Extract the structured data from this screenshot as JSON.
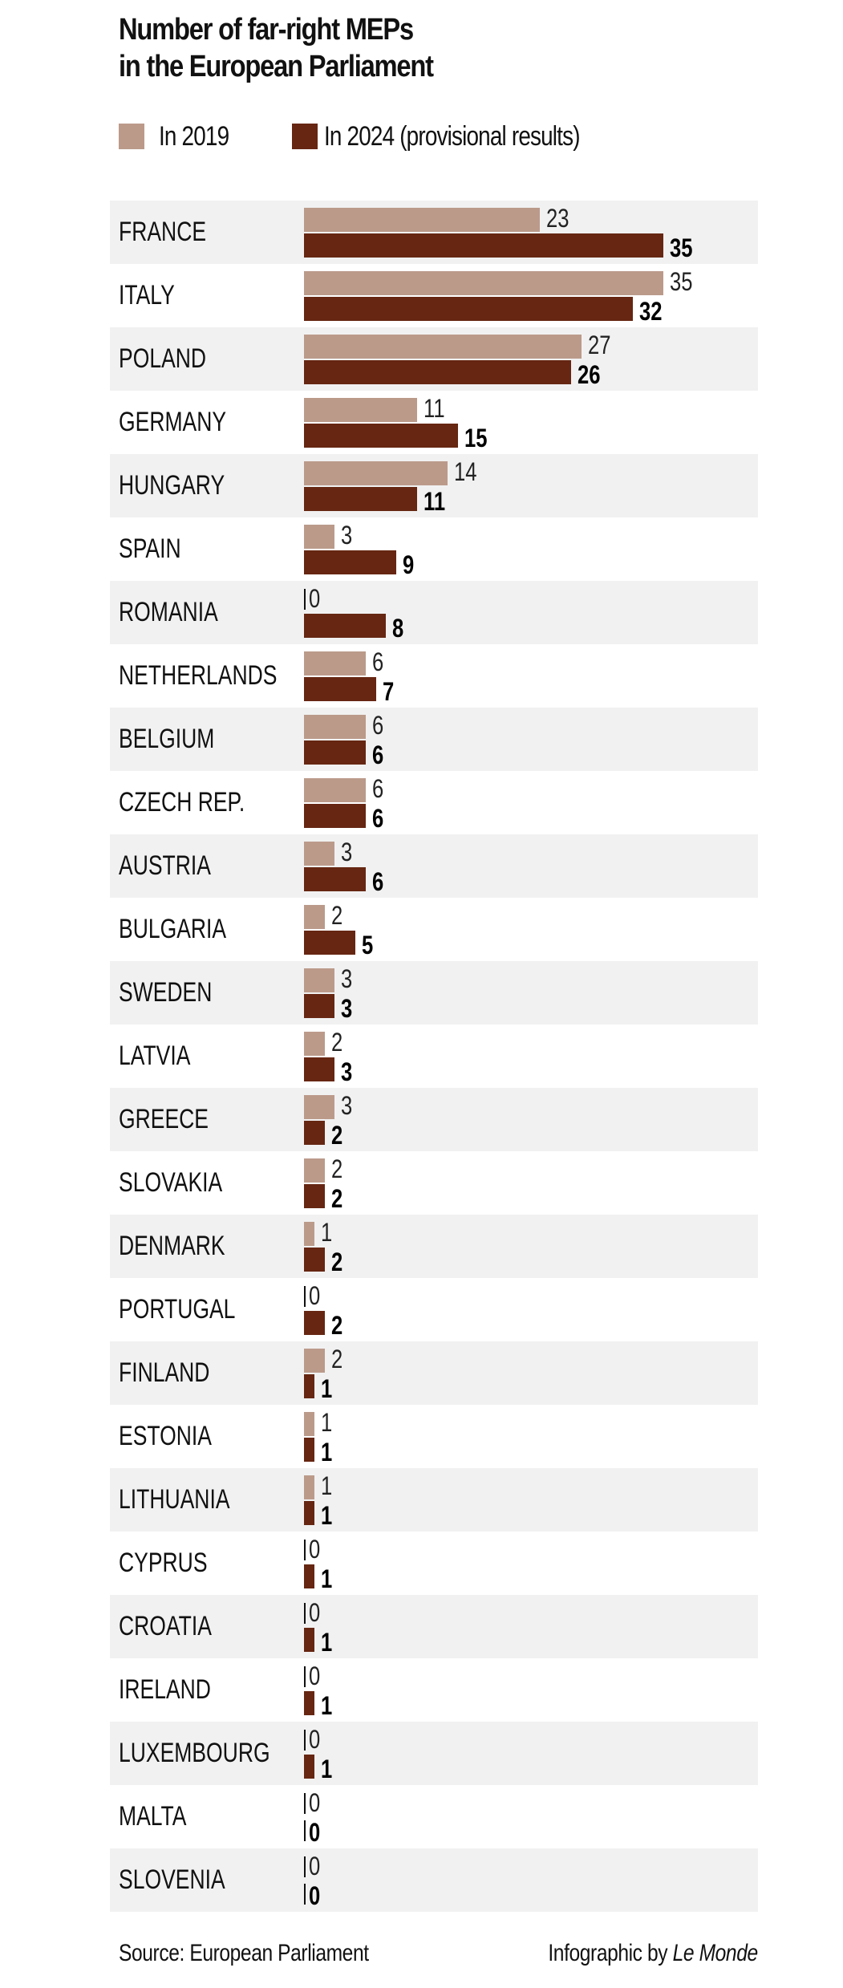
{
  "title_line1": "Number of far-right MEPs",
  "title_line2": "in the European Parliament",
  "legend": [
    {
      "label": "In 2019",
      "color": "#bb9a8a"
    },
    {
      "label": "In 2024 (provisional results)",
      "color": "#662612"
    }
  ],
  "footer": {
    "source": "Source: European Parliament",
    "credit_prefix": "Infographic by ",
    "credit_brand": "Le Monde"
  },
  "colors": {
    "y2019": "#bb9a8a",
    "y2024": "#662612",
    "row_alt": "#f1f1f1"
  },
  "chart_data": {
    "type": "bar",
    "orientation": "horizontal",
    "title": "Number of far-right MEPs in the European Parliament",
    "xlabel": "",
    "ylabel": "",
    "grid": false,
    "legend_position": "top",
    "categories": [
      "FRANCE",
      "ITALY",
      "POLAND",
      "GERMANY",
      "HUNGARY",
      "SPAIN",
      "ROMANIA",
      "NETHERLANDS",
      "BELGIUM",
      "CZECH REP.",
      "AUSTRIA",
      "BULGARIA",
      "SWEDEN",
      "LATVIA",
      "GREECE",
      "SLOVAKIA",
      "DENMARK",
      "PORTUGAL",
      "FINLAND",
      "ESTONIA",
      "LITHUANIA",
      "CYPRUS",
      "CROATIA",
      "IRELAND",
      "LUXEMBOURG",
      "MALTA",
      "SLOVENIA"
    ],
    "series": [
      {
        "name": "In 2019",
        "values": [
          23,
          35,
          27,
          11,
          14,
          3,
          0,
          6,
          6,
          6,
          3,
          2,
          3,
          2,
          3,
          2,
          1,
          0,
          2,
          1,
          1,
          0,
          0,
          0,
          0,
          0,
          0
        ]
      },
      {
        "name": "In 2024 (provisional results)",
        "values": [
          35,
          32,
          26,
          15,
          11,
          9,
          8,
          7,
          6,
          6,
          6,
          5,
          3,
          3,
          2,
          2,
          2,
          2,
          1,
          1,
          1,
          1,
          1,
          1,
          1,
          0,
          0
        ]
      }
    ],
    "xlim": [
      0,
      35
    ],
    "source": "Source: European Parliament",
    "credit": "Infographic by Le Monde"
  }
}
